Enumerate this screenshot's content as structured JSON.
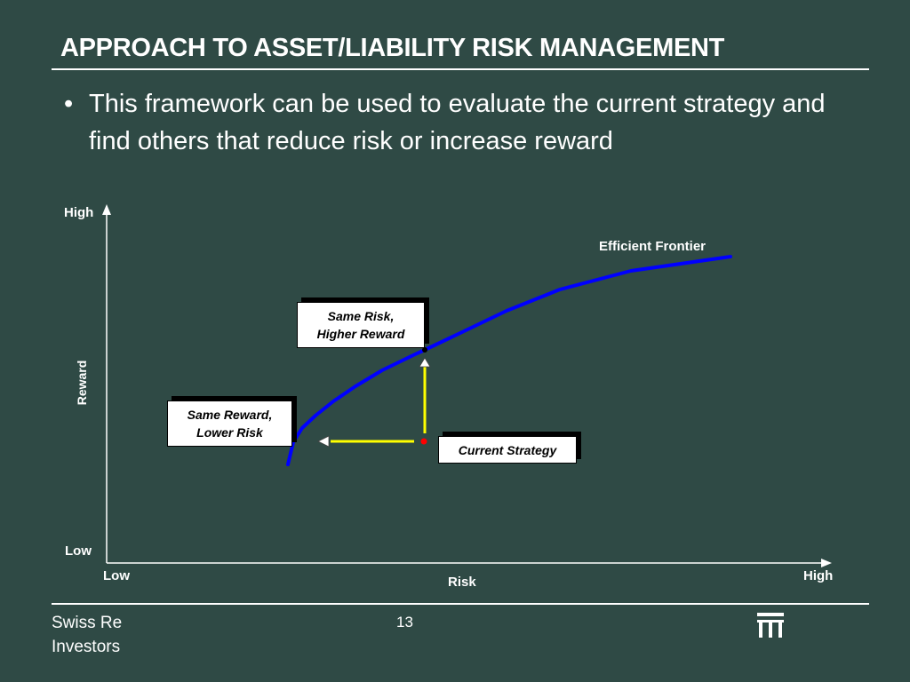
{
  "slide": {
    "title": "APPROACH TO ASSET/LIABILITY RISK MANAGEMENT",
    "bullet_marker": "•",
    "bullet_text": "This framework can be used to evaluate the current strategy and find others that reduce risk or increase reward"
  },
  "diagram": {
    "y_axis": {
      "label": "Reward",
      "high": "High",
      "low": "Low"
    },
    "x_axis": {
      "label": "Risk",
      "low": "Low",
      "high": "High"
    },
    "curve_label": "Efficient Frontier",
    "boxes": {
      "same_risk": [
        "Same Risk,",
        "Higher Reward"
      ],
      "same_reward": [
        "Same Reward,",
        "Lower Risk"
      ],
      "current": "Current Strategy"
    },
    "colors": {
      "background": "#2f4a45",
      "frontier": "#0000ff",
      "arrows": "#ffff00",
      "current_point": "#ff0000",
      "axes": "#ffffff"
    }
  },
  "footer": {
    "company_line1": "Swiss Re",
    "company_line2": "Investors",
    "page_number": "13",
    "logo": "swiss-re-logo-icon"
  }
}
